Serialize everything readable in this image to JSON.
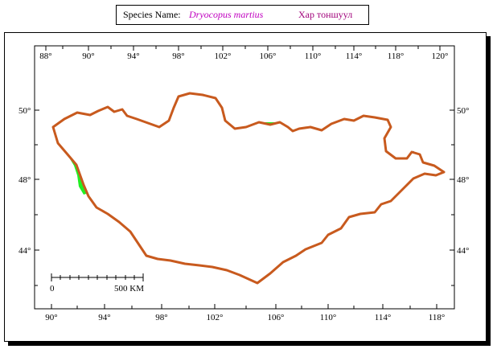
{
  "title": {
    "label": "Species Name:",
    "scientific_name": "Dryocopus martius",
    "local_name": "Хар тоншуул",
    "scientific_color": "#c000c0",
    "local_color": "#a0007a"
  },
  "axes": {
    "top_longitudes": [
      "88°",
      "90°",
      "94°",
      "98°",
      "102°",
      "106°",
      "110°",
      "114°",
      "118°",
      "120°"
    ],
    "bottom_longitudes": [
      "90°",
      "94°",
      "98°",
      "102°",
      "106°",
      "110°",
      "114°",
      "118°"
    ],
    "left_latitudes": [
      "50°",
      "48°",
      "44°"
    ],
    "right_latitudes": [
      "50°",
      "48°",
      "44°"
    ]
  },
  "scale_bar": {
    "start_label": "0",
    "end_label": "500 KM"
  },
  "colors": {
    "range_fill": "#22ee22",
    "border": "#c85a1e",
    "water": "#1c4fa0",
    "admin_lines": "#000000"
  }
}
